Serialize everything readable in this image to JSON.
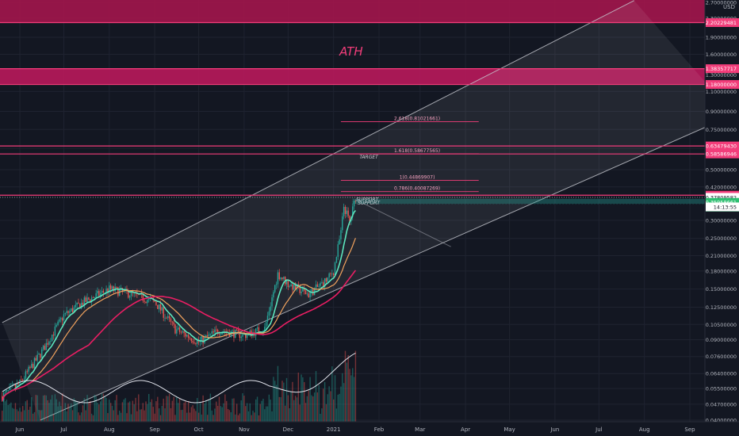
{
  "chart_data": {
    "type": "candlestick",
    "title": "",
    "currency": "USD",
    "y_scale": "log",
    "y_range": [
      0.04,
      2.7
    ],
    "y_ticks": [
      {
        "v": 2.7,
        "label": "2.70000000"
      },
      {
        "v": 2.3,
        "label": "2.30000000"
      },
      {
        "v": 1.9,
        "label": "1.90000000"
      },
      {
        "v": 1.6,
        "label": "1.60000000"
      },
      {
        "v": 1.3,
        "label": "1.30000000"
      },
      {
        "v": 1.1,
        "label": "1.10000000"
      },
      {
        "v": 0.9,
        "label": "0.90000000"
      },
      {
        "v": 0.75,
        "label": "0.75000000"
      },
      {
        "v": 0.62,
        "label": "0.62000000"
      },
      {
        "v": 0.5,
        "label": "0.50000000"
      },
      {
        "v": 0.42,
        "label": "0.42000000"
      },
      {
        "v": 0.3,
        "label": "0.30000000"
      },
      {
        "v": 0.25,
        "label": "0.25000000"
      },
      {
        "v": 0.21,
        "label": "0.21000000"
      },
      {
        "v": 0.18,
        "label": "0.18000000"
      },
      {
        "v": 0.15,
        "label": "0.15000000"
      },
      {
        "v": 0.125,
        "label": "0.12500000"
      },
      {
        "v": 0.105,
        "label": "0.10500000"
      },
      {
        "v": 0.09,
        "label": "0.09000000"
      },
      {
        "v": 0.076,
        "label": "0.07600000"
      },
      {
        "v": 0.064,
        "label": "0.06400000"
      },
      {
        "v": 0.055,
        "label": "0.05500000"
      },
      {
        "v": 0.047,
        "label": "0.04700000"
      },
      {
        "v": 0.04,
        "label": "0.04000000"
      }
    ],
    "x_ticks": [
      {
        "d": "2020-06-01",
        "label": "Jun"
      },
      {
        "d": "2020-07-01",
        "label": "Jul"
      },
      {
        "d": "2020-08-01",
        "label": "Aug"
      },
      {
        "d": "2020-09-01",
        "label": "Sep"
      },
      {
        "d": "2020-10-01",
        "label": "Oct"
      },
      {
        "d": "2020-11-01",
        "label": "Nov"
      },
      {
        "d": "2020-12-01",
        "label": "Dec"
      },
      {
        "d": "2021-01-01",
        "label": "2021"
      },
      {
        "d": "2021-02-01",
        "label": "Feb"
      },
      {
        "d": "2021-03-01",
        "label": "Mar"
      },
      {
        "d": "2021-04-01",
        "label": "Apr"
      },
      {
        "d": "2021-05-01",
        "label": "May"
      },
      {
        "d": "2021-06-01",
        "label": "Jun"
      },
      {
        "d": "2021-07-01",
        "label": "Jul"
      },
      {
        "d": "2021-08-01",
        "label": "Aug"
      },
      {
        "d": "2021-09-01",
        "label": "Sep"
      }
    ],
    "price_path": [
      {
        "d": "2020-05-20",
        "v": 0.051
      },
      {
        "d": "2020-06-01",
        "v": 0.058
      },
      {
        "d": "2020-06-15",
        "v": 0.078
      },
      {
        "d": "2020-07-01",
        "v": 0.115
      },
      {
        "d": "2020-07-15",
        "v": 0.132
      },
      {
        "d": "2020-08-01",
        "v": 0.15
      },
      {
        "d": "2020-08-15",
        "v": 0.143
      },
      {
        "d": "2020-09-01",
        "v": 0.132
      },
      {
        "d": "2020-09-15",
        "v": 0.1
      },
      {
        "d": "2020-10-01",
        "v": 0.088
      },
      {
        "d": "2020-10-15",
        "v": 0.099
      },
      {
        "d": "2020-11-01",
        "v": 0.094
      },
      {
        "d": "2020-11-15",
        "v": 0.101
      },
      {
        "d": "2020-11-24",
        "v": 0.175
      },
      {
        "d": "2020-12-01",
        "v": 0.158
      },
      {
        "d": "2020-12-15",
        "v": 0.142
      },
      {
        "d": "2020-12-28",
        "v": 0.166
      },
      {
        "d": "2021-01-01",
        "v": 0.18
      },
      {
        "d": "2021-01-06",
        "v": 0.265
      },
      {
        "d": "2021-01-08",
        "v": 0.345
      },
      {
        "d": "2021-01-12",
        "v": 0.295
      },
      {
        "d": "2021-01-16",
        "v": 0.378
      }
    ],
    "horizontal_levels": [
      {
        "v": 2.20229481,
        "label": "2.20229481",
        "color": "#f23d7a"
      },
      {
        "v": 1.38357717,
        "label": "1.38357717",
        "color": "#f23d7a"
      },
      {
        "v": 1.18,
        "label": "1.18000000",
        "color": "#f23d7a"
      },
      {
        "v": 0.6347943,
        "label": "0.63479430",
        "color": "#f23d7a"
      },
      {
        "v": 0.58586946,
        "label": "0.58586946",
        "color": "#f23d7a"
      },
      {
        "v": 0.38632473,
        "label": "0.38632473",
        "color": "#f23d7a"
      },
      {
        "v": 0.37809582,
        "label": "0.37809582",
        "color": "#ffffff"
      },
      {
        "v": 0.35958661,
        "label": "0.35958661",
        "color": "#2fbf71"
      },
      {
        "v": 0.34267446,
        "label": "0.34267446",
        "color": "#2fbf71"
      }
    ],
    "countdown": "14:13:55",
    "fib_levels": [
      {
        "label": "2.618(0.81021661)",
        "v": 0.81021661
      },
      {
        "label": "1.618(0.58677565)",
        "v": 0.58677565
      },
      {
        "label": "1(0.44869907)",
        "v": 0.44869907
      },
      {
        "label": "0.786(0.40087269)",
        "v": 0.40087269
      }
    ],
    "annotations": [
      {
        "text": "ATH",
        "v": 1.58,
        "d": "2021-01-13"
      },
      {
        "text": "TARGET",
        "v": 0.56,
        "d": "2021-01-25"
      },
      {
        "text": "SUPPORT",
        "v": 0.365,
        "d": "2021-01-24"
      },
      {
        "text": "SUPPORT",
        "v": 0.352,
        "d": "2021-01-25"
      }
    ],
    "channel": {
      "upper": [
        {
          "d": "2020-05-20",
          "v": 0.107
        },
        {
          "d": "2021-07-25",
          "v": 2.75
        }
      ],
      "lower": [
        {
          "d": "2020-06-15",
          "v": 0.04
        },
        {
          "d": "2021-10-01",
          "v": 0.87
        }
      ]
    },
    "grid": true
  },
  "axis": {
    "currency_label": "USD"
  }
}
